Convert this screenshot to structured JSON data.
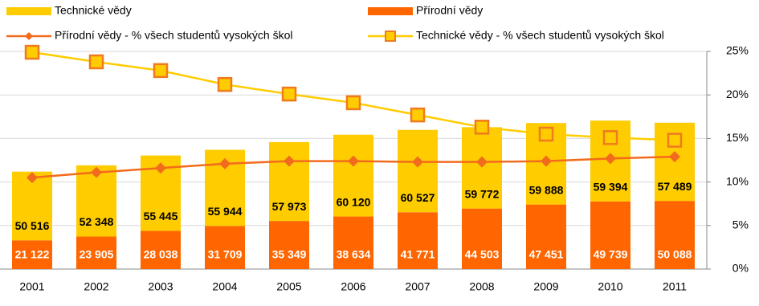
{
  "chart_data": {
    "type": "bar",
    "stacked": true,
    "categories": [
      "2001",
      "2002",
      "2003",
      "2004",
      "2005",
      "2006",
      "2007",
      "2008",
      "2009",
      "2010",
      "2011"
    ],
    "ylim": [
      0,
      160000
    ],
    "y2lim": [
      0,
      25
    ],
    "y2ticks": [
      {
        "value": 0,
        "label": "0%"
      },
      {
        "value": 5,
        "label": "5%"
      },
      {
        "value": 10,
        "label": "10%"
      },
      {
        "value": 15,
        "label": "15%"
      },
      {
        "value": 20,
        "label": "20%"
      },
      {
        "value": 25,
        "label": "25%"
      }
    ],
    "grid": true,
    "series": [
      {
        "name": "Technické vědy",
        "type": "bar",
        "color": "#FFCC00",
        "values": [
          50516,
          52348,
          55445,
          55944,
          57973,
          60120,
          60527,
          59772,
          59888,
          59394,
          57489
        ],
        "value_labels": [
          "50 516",
          "52 348",
          "55 445",
          "55 944",
          "57 973",
          "60 120",
          "60 527",
          "59 772",
          "59 888",
          "59 394",
          "57 489"
        ]
      },
      {
        "name": "Přírodní vědy",
        "type": "bar",
        "color": "#FF6600",
        "values": [
          21122,
          23905,
          28038,
          31709,
          35349,
          38634,
          41771,
          44503,
          47451,
          49739,
          50088
        ],
        "value_labels": [
          "21 122",
          "23 905",
          "28 038",
          "31 709",
          "35 349",
          "38 634",
          "41 771",
          "44 503",
          "47 451",
          "49 739",
          "50 088"
        ]
      },
      {
        "name": "Přírodní vědy - % všech studentů vysokých škol",
        "type": "line",
        "axis": "y2",
        "marker": "diamond",
        "color": "#F26B1D",
        "values": [
          10.5,
          11.1,
          11.6,
          12.1,
          12.4,
          12.4,
          12.3,
          12.3,
          12.4,
          12.7,
          12.9
        ]
      },
      {
        "name": "Technické vědy - % všech studentů vysokých škol",
        "type": "line",
        "axis": "y2",
        "marker": "square",
        "color": "#FFCC00",
        "values": [
          24.9,
          23.8,
          22.8,
          21.2,
          20.1,
          19.1,
          17.7,
          16.3,
          15.5,
          15.1,
          14.8
        ]
      }
    ]
  }
}
